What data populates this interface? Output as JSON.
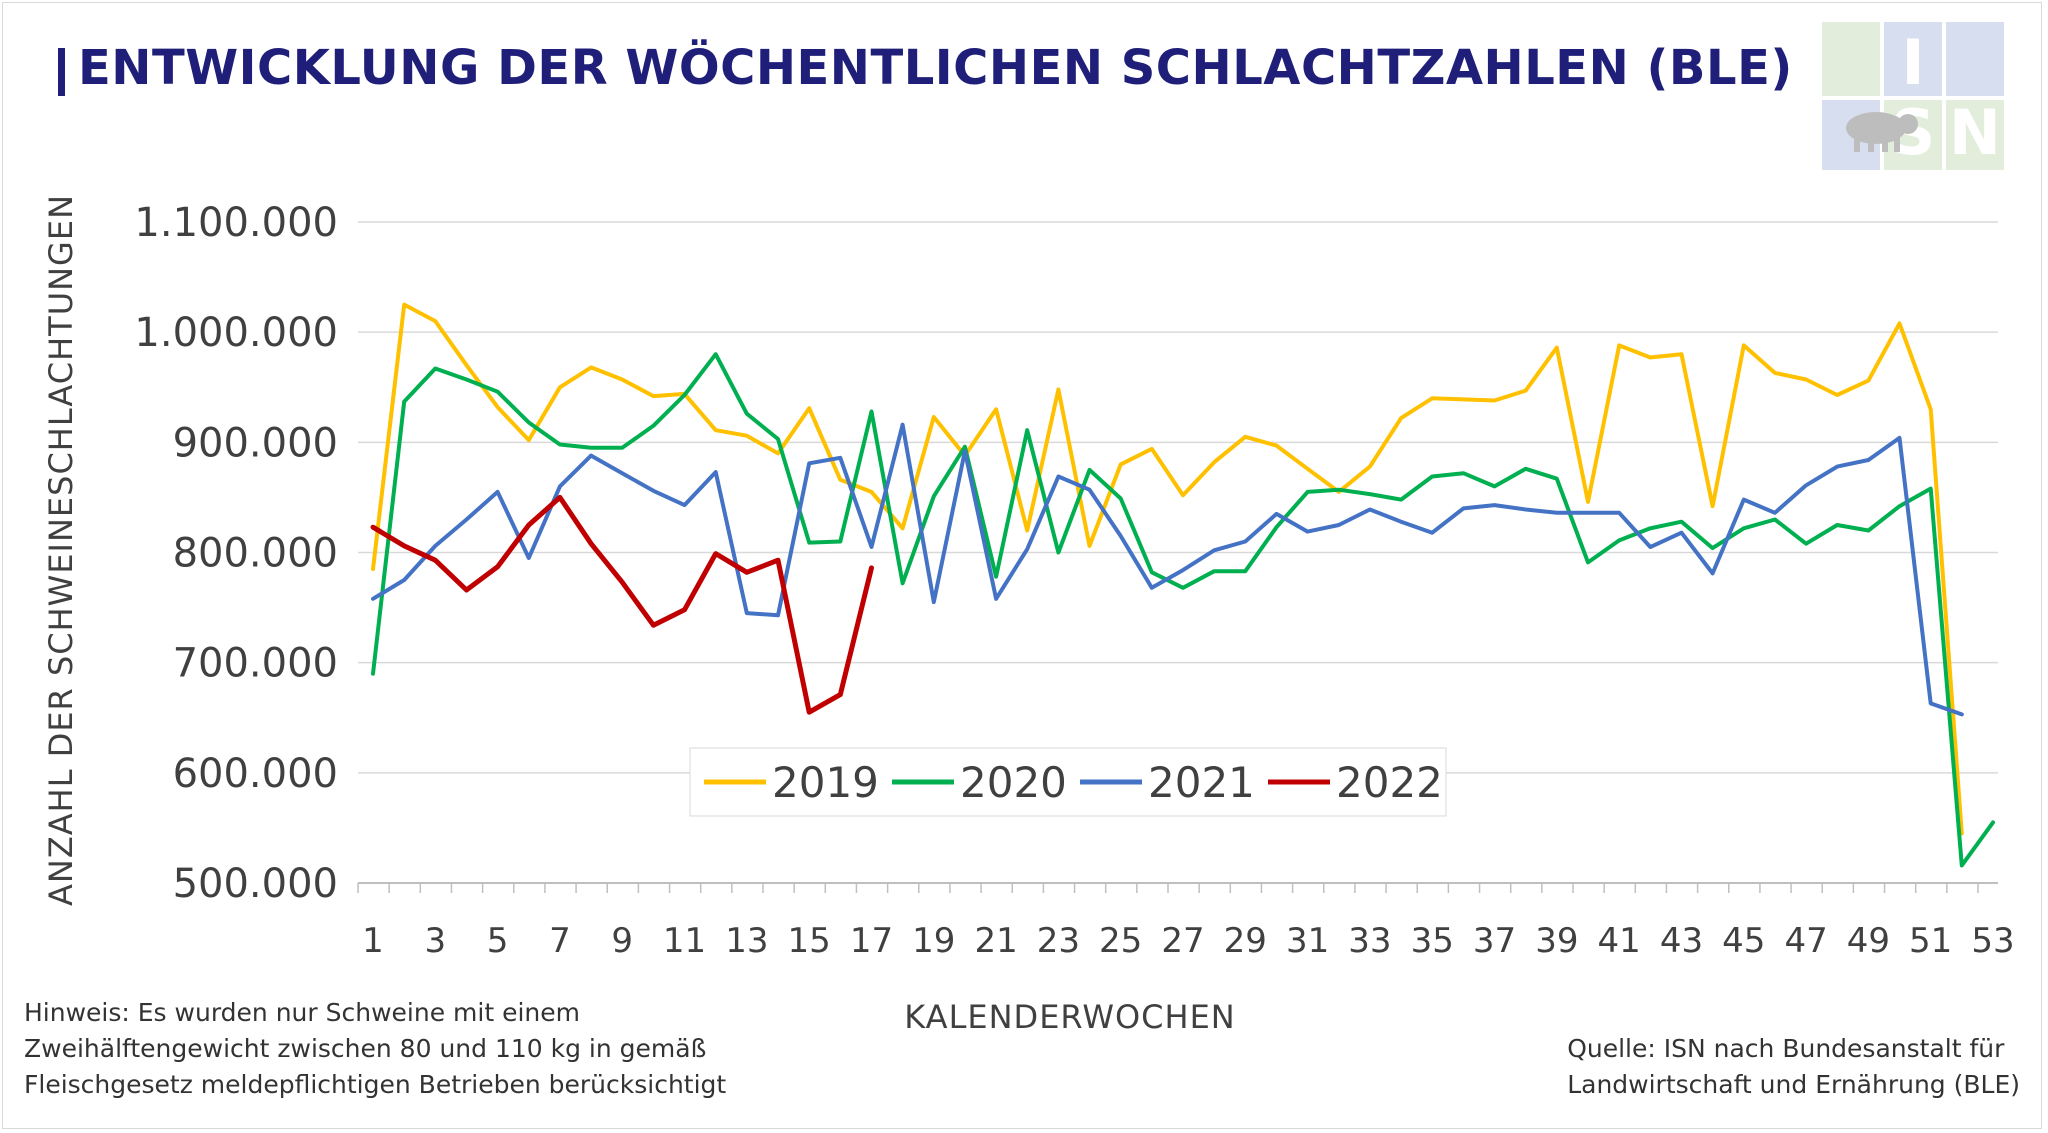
{
  "title": "ENTWICKLUNG DER WÖCHENTLICHEN SCHLACHTZAHLEN (BLE)",
  "logo_text": "ISN",
  "note_lines": [
    "Hinweis: Es wurden nur Schweine mit einem",
    "Zweihälftengewicht zwischen 80 und 110 kg  in gemäß",
    "Fleischgesetz meldepflichtigen Betrieben berücksichtigt"
  ],
  "source_lines": [
    "Quelle: ISN nach Bundesanstalt für",
    "Landwirtschaft und Ernährung (BLE)"
  ],
  "colors": {
    "title": "#1f1f7a",
    "2019": "#ffc000",
    "2020": "#00b050",
    "2021": "#4472c4",
    "2022": "#c00000"
  },
  "chart_data": {
    "type": "line",
    "title": "ENTWICKLUNG DER WÖCHENTLICHEN SCHLACHTZAHLEN (BLE)",
    "xlabel": "KALENDERWOCHEN",
    "ylabel": "ANZAHL DER SCHWEINESCHLACHTUNGEN",
    "ylim": [
      500000,
      1100000
    ],
    "yticks": [
      500000,
      600000,
      700000,
      800000,
      900000,
      1000000,
      1100000
    ],
    "ytick_labels": [
      "500.000",
      "600.000",
      "700.000",
      "800.000",
      "900.000",
      "1.000.000",
      "1.100.000"
    ],
    "xlim": [
      1,
      53
    ],
    "xtick_labels": [
      "1",
      "3",
      "5",
      "7",
      "9",
      "11",
      "13",
      "15",
      "17",
      "19",
      "21",
      "23",
      "25",
      "27",
      "29",
      "31",
      "33",
      "35",
      "37",
      "39",
      "41",
      "43",
      "45",
      "47",
      "49",
      "51",
      "53"
    ],
    "grid": "horizontal",
    "legend_position": "bottom-left inside plot",
    "series": [
      {
        "name": "2019",
        "color": "#ffc000",
        "values": [
          785000,
          1025000,
          1010000,
          970000,
          932000,
          902000,
          950000,
          968000,
          957000,
          942000,
          944000,
          911000,
          906000,
          890000,
          931000,
          866000,
          855000,
          822000,
          923000,
          888000,
          930000,
          820000,
          948000,
          806000,
          880000,
          894000,
          852000,
          882000,
          905000,
          897000,
          876000,
          855000,
          878000,
          922000,
          940000,
          939000,
          938000,
          947000,
          986000,
          846000,
          988000,
          977000,
          980000,
          842000,
          988000,
          963000,
          957000,
          943000,
          956000,
          1008000,
          930000,
          545000
        ]
      },
      {
        "name": "2020",
        "color": "#00b050",
        "values": [
          690000,
          937000,
          967000,
          957000,
          946000,
          918000,
          898000,
          895000,
          895000,
          915000,
          943000,
          980000,
          926000,
          903000,
          809000,
          810000,
          928000,
          772000,
          851000,
          896000,
          778000,
          911000,
          800000,
          875000,
          849000,
          782000,
          768000,
          783000,
          783000,
          823000,
          855000,
          857000,
          853000,
          848000,
          869000,
          872000,
          860000,
          876000,
          867000,
          791000,
          811000,
          822000,
          828000,
          804000,
          822000,
          830000,
          808000,
          825000,
          820000,
          842000,
          858000,
          516000,
          555000
        ]
      },
      {
        "name": "2021",
        "color": "#4472c4",
        "values": [
          758000,
          775000,
          806000,
          830000,
          855000,
          795000,
          860000,
          888000,
          872000,
          856000,
          843000,
          873000,
          745000,
          743000,
          881000,
          886000,
          805000,
          916000,
          755000,
          892000,
          758000,
          803000,
          869000,
          857000,
          815000,
          768000,
          784000,
          802000,
          810000,
          835000,
          819000,
          825000,
          839000,
          828000,
          818000,
          840000,
          843000,
          839000,
          836000,
          836000,
          836000,
          805000,
          818000,
          781000,
          848000,
          836000,
          861000,
          878000,
          884000,
          904000,
          663000,
          653000
        ]
      },
      {
        "name": "2022",
        "color": "#c00000",
        "values": [
          823000,
          806000,
          793000,
          766000,
          787000,
          825000,
          850000,
          808000,
          773000,
          734000,
          748000,
          799000,
          782000,
          793000,
          655000,
          671000,
          786000
        ]
      }
    ]
  }
}
